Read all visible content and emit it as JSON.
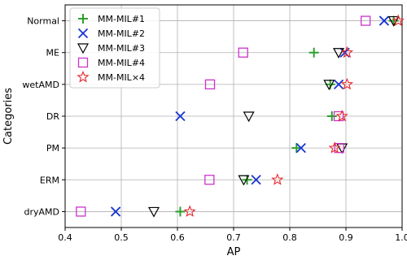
{
  "chart_data": {
    "type": "scatter",
    "xlabel": "AP",
    "ylabel": "Categories",
    "xlim": [
      0.4,
      1.0
    ],
    "xticks": [
      "0.4",
      "0.5",
      "0.6",
      "0.7",
      "0.8",
      "0.9",
      "1.0"
    ],
    "categories": [
      "Normal",
      "ME",
      "wetAMD",
      "DR",
      "PM",
      "ERM",
      "dryAMD"
    ],
    "grid": true,
    "legend_position": "top-left",
    "series": [
      {
        "name": "MM-MIL#1",
        "marker": "plus",
        "color": "#2ca02c",
        "values": [
          0.985,
          0.843,
          0.872,
          0.875,
          0.812,
          0.724,
          0.605
        ]
      },
      {
        "name": "MM-MIL#2",
        "marker": "x",
        "color": "#1a35d4",
        "values": [
          0.968,
          0.898,
          0.887,
          0.605,
          0.82,
          0.74,
          0.49
        ]
      },
      {
        "name": "MM-MIL#3",
        "marker": "triangle-down",
        "color": "#000000",
        "values": [
          0.985,
          0.887,
          0.87,
          0.727,
          0.893,
          0.718,
          0.558
        ]
      },
      {
        "name": "MM-MIL#4",
        "marker": "square",
        "color": "#cc33cc",
        "values": [
          0.935,
          0.717,
          0.658,
          0.887,
          0.888,
          0.657,
          0.428
        ]
      },
      {
        "name": "MM-MIL×4",
        "marker": "star",
        "color": "#e8262a",
        "values": [
          0.993,
          0.902,
          0.902,
          0.893,
          0.88,
          0.778,
          0.622
        ]
      }
    ]
  }
}
